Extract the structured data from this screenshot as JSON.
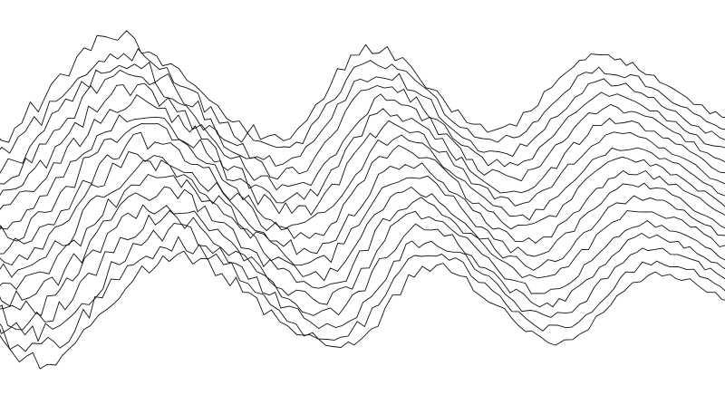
{
  "artwork": {
    "style": "wavy-line-field",
    "stroke_color": "#111111",
    "background_color": "#ffffff"
  }
}
